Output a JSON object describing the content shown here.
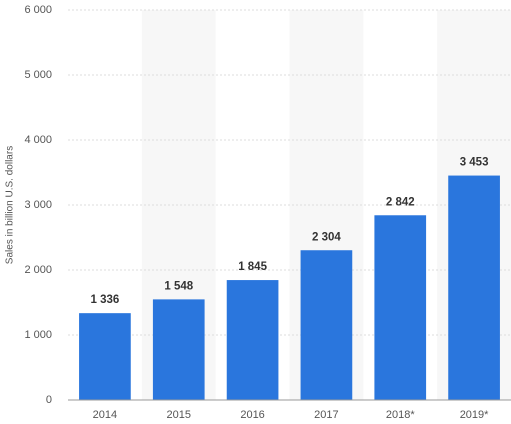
{
  "chart_data": {
    "type": "bar",
    "y_axis_label": "Sales in billion U.S. dollars",
    "categories": [
      "2014",
      "2015",
      "2016",
      "2017",
      "2018*",
      "2019*"
    ],
    "values": [
      1336,
      1548,
      1845,
      2304,
      2842,
      3453
    ],
    "value_labels": [
      "1 336",
      "1 548",
      "1 845",
      "2 304",
      "2 842",
      "3 453"
    ],
    "color": "#2a76dd",
    "ylim": [
      0,
      6000
    ],
    "yticks": [
      0,
      {
        "value": 1000,
        "label": "1 000"
      },
      {
        "value": 2000,
        "label": "2 000"
      },
      {
        "value": 3000,
        "label": "3 000"
      },
      {
        "value": 4000,
        "label": "4 000"
      },
      {
        "value": 5000,
        "label": "5 000"
      },
      {
        "value": 6000,
        "label": "6 000"
      }
    ],
    "grid": true
  }
}
